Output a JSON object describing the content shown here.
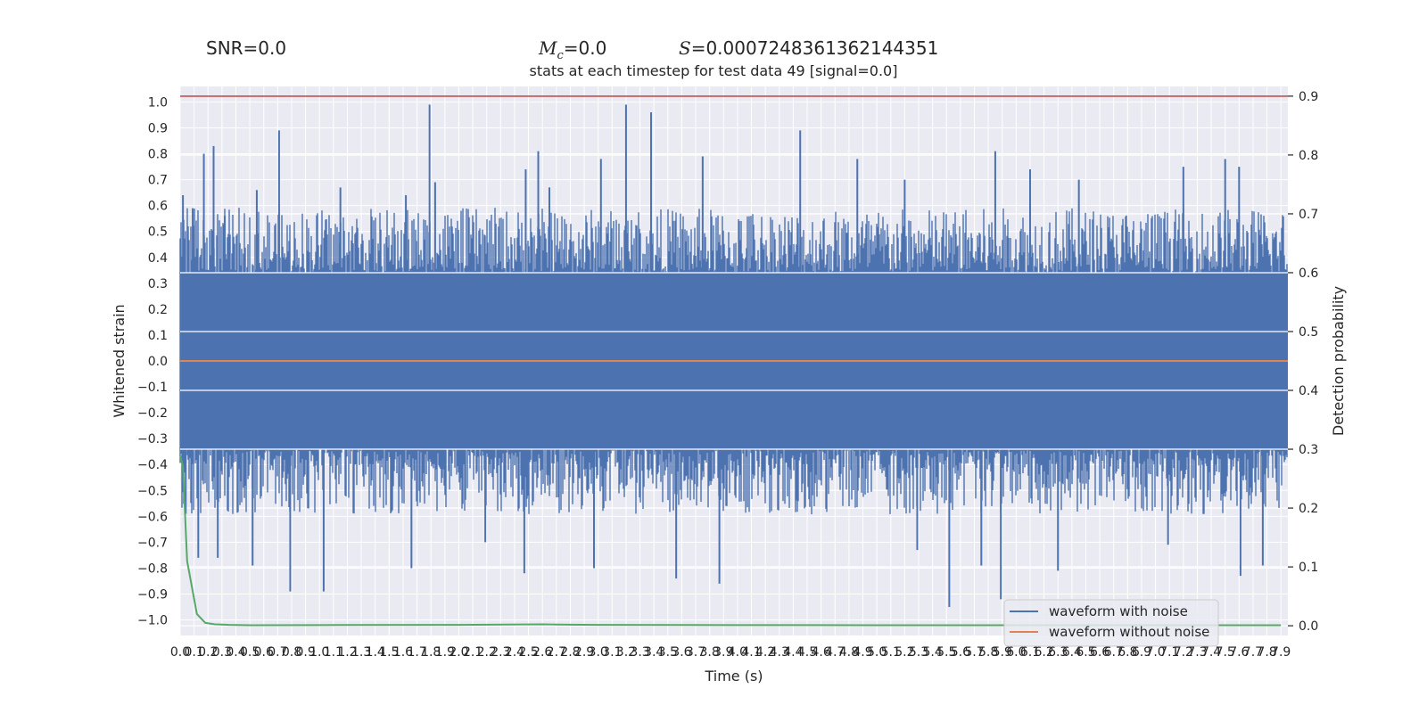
{
  "header": {
    "snr": "SNR=0.0",
    "mc_symbol": "M",
    "mc_sub": "c",
    "mc_value": "=0.0",
    "s_symbol": "S",
    "s_value": "=0.0007248361362144351"
  },
  "chart_data": {
    "type": "line",
    "title": "stats at each timestep for test data 49 [signal=0.0]",
    "xlabel": "Time (s)",
    "ylabel": "Whitened strain",
    "y2label": "Detection probability",
    "xlim": [
      0.0,
      7.95
    ],
    "ylim": [
      -1.06,
      1.06
    ],
    "y2lim": [
      -0.0165,
      0.9165
    ],
    "x_ticks": [
      0.0,
      0.1,
      0.2,
      0.3,
      0.4,
      0.5,
      0.6,
      0.7,
      0.8,
      0.9,
      1.0,
      1.1,
      1.2,
      1.3,
      1.4,
      1.5,
      1.6,
      1.7,
      1.8,
      1.9,
      2.0,
      2.1,
      2.2,
      2.3,
      2.4,
      2.5,
      2.6,
      2.7,
      2.8,
      2.9,
      3.0,
      3.1,
      3.2,
      3.3,
      3.4,
      3.5,
      3.6,
      3.7,
      3.8,
      3.9,
      4.0,
      4.1,
      4.2,
      4.3,
      4.4,
      4.5,
      4.6,
      4.7,
      4.8,
      4.9,
      5.0,
      5.1,
      5.2,
      5.3,
      5.4,
      5.5,
      5.6,
      5.7,
      5.8,
      5.9,
      6.0,
      6.1,
      6.2,
      6.3,
      6.4,
      6.5,
      6.6,
      6.7,
      6.8,
      6.9,
      7.0,
      7.1,
      7.2,
      7.3,
      7.4,
      7.5,
      7.6,
      7.7,
      7.8,
      7.9
    ],
    "y_ticks": [
      -1.0,
      -0.9,
      -0.8,
      -0.7,
      -0.6,
      -0.5,
      -0.4,
      -0.3,
      -0.2,
      -0.1,
      0.0,
      0.1,
      0.2,
      0.3,
      0.4,
      0.5,
      0.6,
      0.7,
      0.8,
      0.9,
      1.0
    ],
    "y2_ticks": [
      0.0,
      0.1,
      0.2,
      0.3,
      0.4,
      0.5,
      0.6,
      0.7,
      0.8,
      0.9
    ],
    "threshold": 0.9,
    "legend_position": "lower-right",
    "series": [
      {
        "name": "waveform with noise",
        "axis": "left",
        "color": "#4c72b0",
        "peaks_pos": [
          [
            0.02,
            0.64
          ],
          [
            0.09,
            0.59
          ],
          [
            0.17,
            0.8
          ],
          [
            0.24,
            0.83
          ],
          [
            0.32,
            0.56
          ],
          [
            0.55,
            0.66
          ],
          [
            0.71,
            0.89
          ],
          [
            1.15,
            0.67
          ],
          [
            1.62,
            0.64
          ],
          [
            1.79,
            0.99
          ],
          [
            1.83,
            0.69
          ],
          [
            2.48,
            0.74
          ],
          [
            2.57,
            0.81
          ],
          [
            2.65,
            0.67
          ],
          [
            3.02,
            0.78
          ],
          [
            3.2,
            0.99
          ],
          [
            3.38,
            0.96
          ],
          [
            3.75,
            0.79
          ],
          [
            4.45,
            0.89
          ],
          [
            4.86,
            0.78
          ],
          [
            5.2,
            0.7
          ],
          [
            5.85,
            0.81
          ],
          [
            6.1,
            0.74
          ],
          [
            6.45,
            0.7
          ],
          [
            7.2,
            0.75
          ],
          [
            7.5,
            0.78
          ],
          [
            7.6,
            0.75
          ],
          [
            7.85,
            0.47
          ]
        ],
        "peaks_neg": [
          [
            0.04,
            -0.59
          ],
          [
            0.13,
            -0.76
          ],
          [
            0.27,
            -0.76
          ],
          [
            0.52,
            -0.79
          ],
          [
            0.79,
            -0.89
          ],
          [
            1.03,
            -0.89
          ],
          [
            1.66,
            -0.8
          ],
          [
            2.19,
            -0.7
          ],
          [
            2.47,
            -0.82
          ],
          [
            2.97,
            -0.8
          ],
          [
            3.56,
            -0.84
          ],
          [
            3.87,
            -0.86
          ],
          [
            5.29,
            -0.73
          ],
          [
            5.52,
            -0.95
          ],
          [
            5.75,
            -0.79
          ],
          [
            5.89,
            -0.92
          ],
          [
            6.3,
            -0.81
          ],
          [
            7.09,
            -0.71
          ],
          [
            7.61,
            -0.83
          ],
          [
            7.77,
            -0.79
          ]
        ],
        "band_pos": 0.34,
        "band_neg": -0.34,
        "noise_amplitude": 0.42
      },
      {
        "name": "waveform without noise",
        "axis": "left",
        "color": "#dd8452",
        "x": [
          0.0,
          7.95
        ],
        "y": [
          0.0,
          0.0
        ]
      },
      {
        "name": "",
        "axis": "right",
        "color": "#55a868",
        "x": [
          0.0,
          0.02,
          0.05,
          0.12,
          0.18,
          0.25,
          0.35,
          0.5,
          1.0,
          2.0,
          2.6,
          2.7,
          3.0,
          4.0,
          5.0,
          6.0,
          7.0,
          7.9
        ],
        "y": [
          0.29,
          0.27,
          0.11,
          0.02,
          0.005,
          0.0025,
          0.0015,
          0.001,
          0.0012,
          0.0015,
          0.0025,
          0.002,
          0.0015,
          0.0012,
          0.001,
          0.001,
          0.001,
          0.001
        ]
      }
    ],
    "colors": {
      "background": "#eaeaf2",
      "grid": "#ffffff",
      "threshold": "#c44e52"
    }
  }
}
